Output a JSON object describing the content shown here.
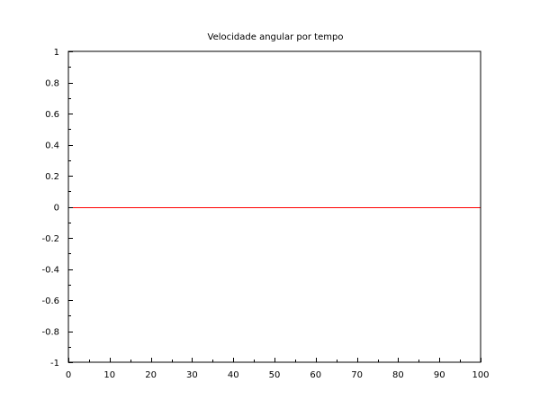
{
  "chart_data": {
    "type": "line",
    "title": "Velocidade angular por tempo",
    "xlabel": "",
    "ylabel": "",
    "xlim": [
      0,
      100
    ],
    "ylim": [
      -1,
      1
    ],
    "x_ticks": [
      0,
      10,
      20,
      30,
      40,
      50,
      60,
      70,
      80,
      90,
      100
    ],
    "y_ticks": [
      1,
      0.8,
      0.6,
      0.4,
      0.2,
      0,
      -0.2,
      -0.4,
      -0.6,
      -0.8,
      -1
    ],
    "x_minor_step": 5,
    "y_minor_step": 0.1,
    "grid": false,
    "legend": "none",
    "series": [
      {
        "color": "#ff0000",
        "x": [
          0,
          100
        ],
        "y": [
          0,
          0
        ]
      }
    ]
  }
}
